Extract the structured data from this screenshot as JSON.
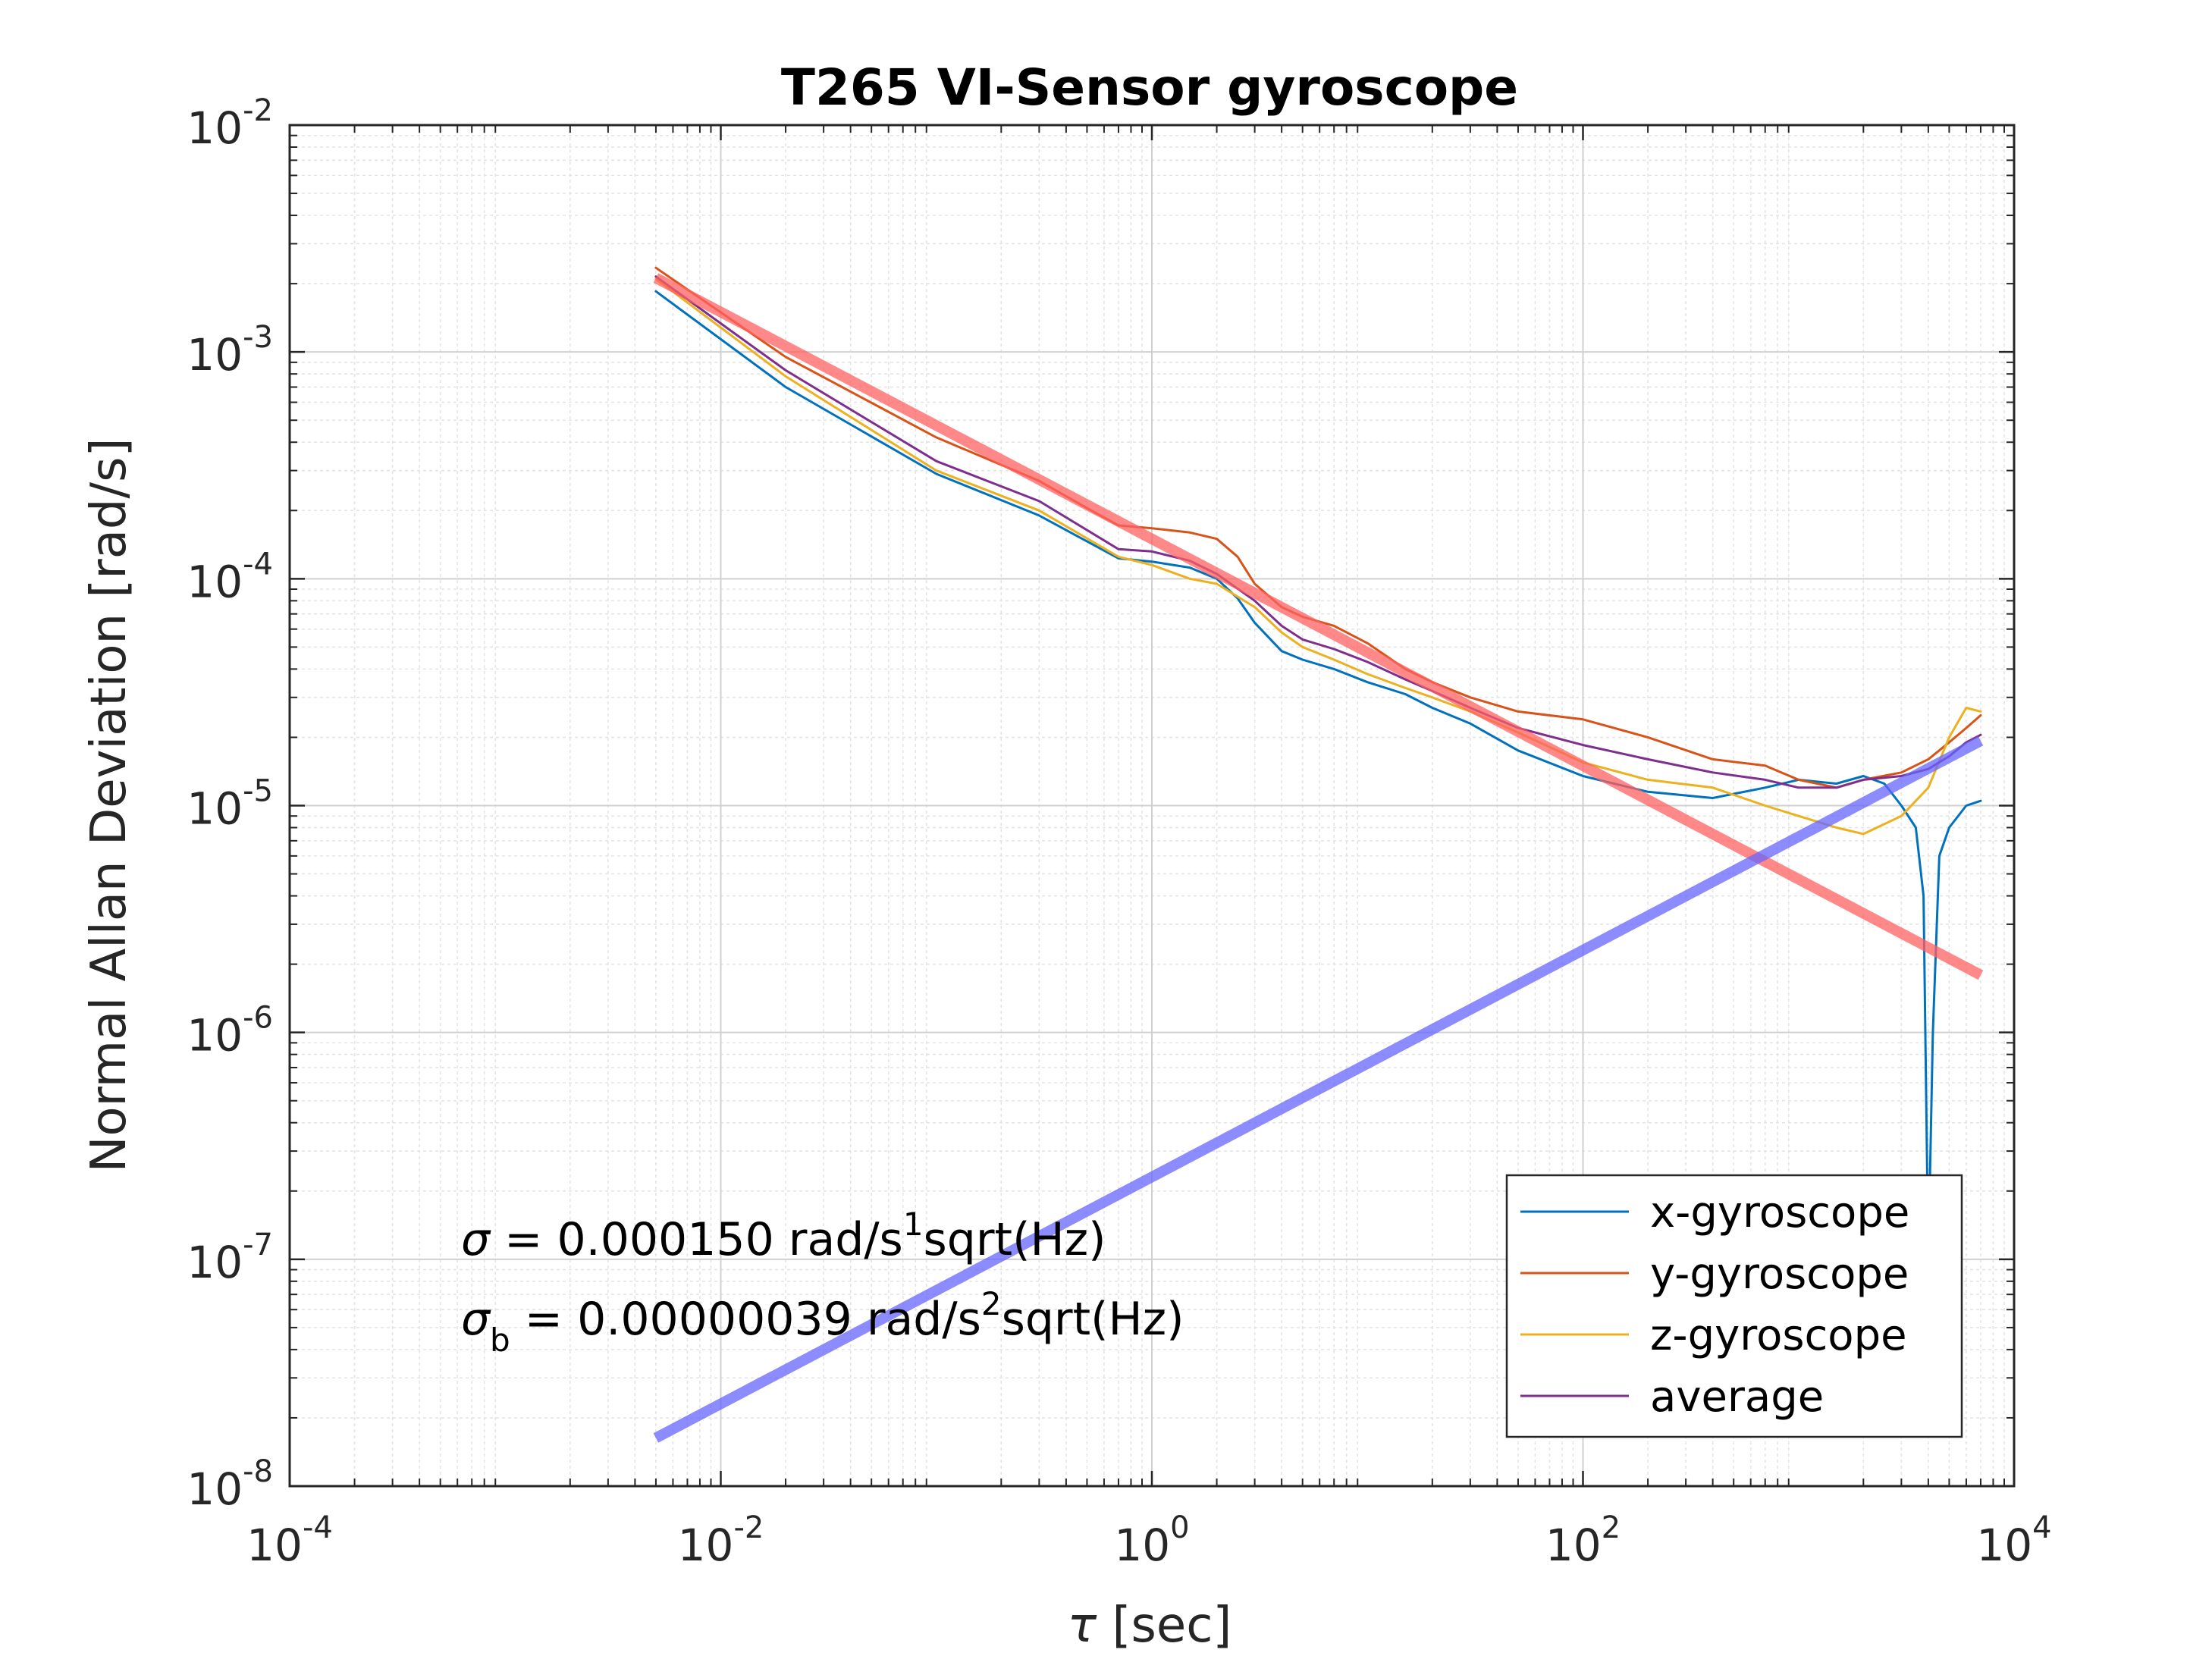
{
  "chart_data": {
    "type": "line",
    "title": "T265 VI-Sensor gyroscope",
    "xlabel": {
      "symbol": "τ",
      "text": " [sec]"
    },
    "ylabel": "Normal Allan Deviation [rad/s]",
    "xscale": "log",
    "yscale": "log",
    "xlim": [
      0.0001,
      10000
    ],
    "ylim": [
      1e-08,
      0.01
    ],
    "grid": true,
    "minor_grid": true,
    "x_ticks": [
      {
        "value": 0.0001,
        "base": "10",
        "exp": "-4"
      },
      {
        "value": 0.01,
        "base": "10",
        "exp": "-2"
      },
      {
        "value": 1,
        "base": "10",
        "exp": "0"
      },
      {
        "value": 100,
        "base": "10",
        "exp": "2"
      },
      {
        "value": 10000,
        "base": "10",
        "exp": "4"
      }
    ],
    "y_ticks": [
      {
        "value": 1e-08,
        "base": "10",
        "exp": "-8"
      },
      {
        "value": 1e-07,
        "base": "10",
        "exp": "-7"
      },
      {
        "value": 1e-06,
        "base": "10",
        "exp": "-6"
      },
      {
        "value": 1e-05,
        "base": "10",
        "exp": "-5"
      },
      {
        "value": 0.0001,
        "base": "10",
        "exp": "-4"
      },
      {
        "value": 0.001,
        "base": "10",
        "exp": "-3"
      },
      {
        "value": 0.01,
        "base": "10",
        "exp": "-2"
      }
    ],
    "legend_position": "bottom-right",
    "series": [
      {
        "name": "x-gyroscope",
        "color": "#0072BD",
        "x": [
          0.005,
          0.02,
          0.1,
          0.3,
          0.7,
          1,
          1.5,
          2,
          2.5,
          3,
          4,
          5,
          7,
          10,
          15,
          20,
          30,
          50,
          100,
          200,
          400,
          700,
          1000,
          1500,
          2000,
          2500,
          3000,
          3500,
          3800,
          4000,
          4200,
          4500,
          5000,
          6000,
          7000
        ],
        "y": [
          0.00185,
          0.0007,
          0.00029,
          0.00019,
          0.000123,
          0.000119,
          0.000112,
          0.0001,
          8.2e-05,
          6.4e-05,
          4.8e-05,
          4.4e-05,
          4e-05,
          3.5e-05,
          3.1e-05,
          2.7e-05,
          2.3e-05,
          1.75e-05,
          1.35e-05,
          1.15e-05,
          1.08e-05,
          1.2e-05,
          1.3e-05,
          1.25e-05,
          1.35e-05,
          1.25e-05,
          1e-05,
          8e-06,
          4e-06,
          1e-07,
          1e-06,
          6e-06,
          8e-06,
          1e-05,
          1.05e-05
        ]
      },
      {
        "name": "y-gyroscope",
        "color": "#D95319",
        "x": [
          0.005,
          0.02,
          0.1,
          0.3,
          0.5,
          0.7,
          1,
          1.5,
          2,
          2.5,
          3,
          4,
          5,
          7,
          10,
          15,
          20,
          30,
          50,
          100,
          200,
          400,
          700,
          1000,
          1500,
          2000,
          3000,
          4000,
          5000,
          6000,
          7000
        ],
        "y": [
          0.00235,
          0.00095,
          0.00042,
          0.00027,
          0.000205,
          0.000172,
          0.000167,
          0.00016,
          0.00015,
          0.000125,
          9.5e-05,
          7.5e-05,
          6.8e-05,
          6.2e-05,
          5.2e-05,
          4e-05,
          3.5e-05,
          3e-05,
          2.6e-05,
          2.4e-05,
          2e-05,
          1.6e-05,
          1.5e-05,
          1.3e-05,
          1.2e-05,
          1.3e-05,
          1.4e-05,
          1.6e-05,
          1.9e-05,
          2.2e-05,
          2.5e-05
        ]
      },
      {
        "name": "z-gyroscope",
        "color": "#EDB120",
        "x": [
          0.005,
          0.02,
          0.1,
          0.3,
          0.7,
          1,
          1.5,
          2,
          3,
          4,
          5,
          7,
          10,
          15,
          20,
          30,
          50,
          100,
          200,
          400,
          700,
          1000,
          1500,
          2000,
          3000,
          4000,
          5000,
          6000,
          7000
        ],
        "y": [
          0.0021,
          0.00078,
          0.0003,
          0.0002,
          0.000125,
          0.000115,
          0.0001,
          9.5e-05,
          7.5e-05,
          5.8e-05,
          5e-05,
          4.4e-05,
          3.8e-05,
          3.3e-05,
          3e-05,
          2.6e-05,
          2.1e-05,
          1.55e-05,
          1.3e-05,
          1.2e-05,
          1e-05,
          9e-06,
          8e-06,
          7.5e-06,
          9e-06,
          1.2e-05,
          2e-05,
          2.7e-05,
          2.6e-05
        ]
      },
      {
        "name": "average",
        "color": "#7E2F8E",
        "x": [
          0.005,
          0.02,
          0.1,
          0.3,
          0.7,
          1,
          1.5,
          2,
          3,
          4,
          5,
          7,
          10,
          15,
          20,
          30,
          50,
          100,
          200,
          400,
          700,
          1000,
          1500,
          2000,
          3000,
          4000,
          5000,
          6000,
          7000
        ],
        "y": [
          0.00215,
          0.00083,
          0.00033,
          0.00022,
          0.000135,
          0.000132,
          0.00012,
          0.000105,
          8e-05,
          6.2e-05,
          5.4e-05,
          4.9e-05,
          4.3e-05,
          3.6e-05,
          3.2e-05,
          2.7e-05,
          2.2e-05,
          1.85e-05,
          1.6e-05,
          1.4e-05,
          1.3e-05,
          1.2e-05,
          1.2e-05,
          1.3e-05,
          1.35e-05,
          1.45e-05,
          1.65e-05,
          1.9e-05,
          2.05e-05
        ]
      },
      {
        "color": "#FF6060",
        "x": [
          0.005,
          7000
        ],
        "y": [
          0.00212,
          1.79e-06
        ]
      },
      {
        "color": "#6666FF",
        "x": [
          0.005,
          7000
        ],
        "y": [
          1.63e-08,
          1.93e-05
        ]
      }
    ],
    "annotations": [
      {
        "symbol": "σ",
        "sub": "",
        "text": " = 0.000150 rad/s",
        "sup": "1",
        "tail": "sqrt(Hz)"
      },
      {
        "symbol": "σ",
        "sub": "b",
        "text": " = 0.00000039 rad/s",
        "sup": "2",
        "tail": "sqrt(Hz)"
      }
    ]
  }
}
